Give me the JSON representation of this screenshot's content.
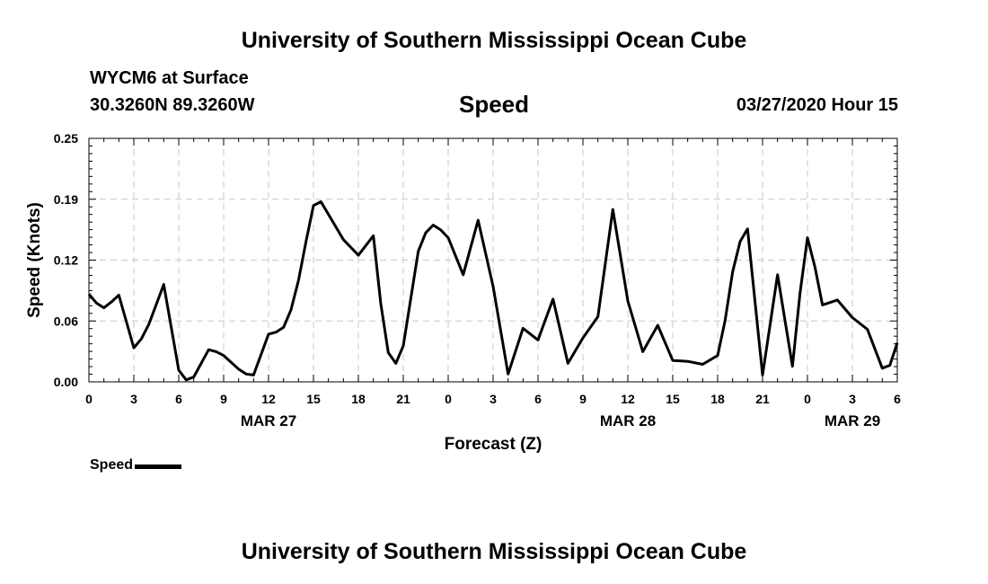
{
  "header": {
    "top_title": "University of Southern Mississippi Ocean Cube",
    "station": "WYCM6 at Surface",
    "coords": "30.3260N 89.3260W",
    "variable": "Speed",
    "datetime": "03/27/2020 Hour 15",
    "bottom_title": "University of Southern Mississippi Ocean Cube"
  },
  "chart_data": {
    "type": "line",
    "title": "Speed",
    "xlabel": "Forecast (Z)",
    "ylabel": "Speed (Knots)",
    "x_ticks": [
      "0",
      "3",
      "6",
      "9",
      "12",
      "15",
      "18",
      "21",
      "0",
      "3",
      "6",
      "9",
      "12",
      "15",
      "18",
      "21",
      "0",
      "3",
      "6"
    ],
    "x_tick_hours": [
      0,
      3,
      6,
      9,
      12,
      15,
      18,
      21,
      24,
      27,
      30,
      33,
      36,
      39,
      42,
      45,
      48,
      51,
      54
    ],
    "date_labels": [
      {
        "label": "MAR 27",
        "hour": 12
      },
      {
        "label": "MAR 28",
        "hour": 36
      },
      {
        "label": "MAR 29",
        "hour": 51
      }
    ],
    "y_ticks": [
      "0.25",
      "0.19",
      "0.12",
      "0.06",
      "0.00"
    ],
    "y_tick_values": [
      0.25,
      0.1875,
      0.125,
      0.0625,
      0
    ],
    "xlim": [
      0,
      54
    ],
    "ylim": [
      0,
      0.25
    ],
    "grid": true,
    "legend": "bottom-left",
    "series": [
      {
        "name": "Speed",
        "color": "#000000",
        "x": [
          0,
          0.5,
          1,
          1.5,
          2,
          3,
          3.5,
          4,
          5,
          6,
          6.5,
          7,
          8,
          8.5,
          9,
          10,
          10.5,
          11,
          12,
          12.5,
          13,
          13.5,
          14,
          14.5,
          15,
          15.5,
          16,
          17,
          18,
          19,
          19.5,
          20,
          20.5,
          21,
          22,
          22.5,
          23,
          23.5,
          24,
          25,
          26,
          27,
          28,
          29,
          30,
          31,
          32,
          33,
          34,
          35,
          36,
          37,
          38,
          39,
          40,
          41,
          42,
          42.5,
          43,
          43.5,
          44,
          45,
          46,
          47,
          47.5,
          48,
          48.5,
          49,
          50,
          51,
          52,
          53,
          53.5,
          54
        ],
        "y": [
          0.09,
          0.081,
          0.076,
          0.082,
          0.089,
          0.035,
          0.044,
          0.059,
          0.1,
          0.012,
          0.002,
          0.005,
          0.033,
          0.031,
          0.027,
          0.013,
          0.008,
          0.007,
          0.049,
          0.051,
          0.056,
          0.074,
          0.104,
          0.144,
          0.181,
          0.185,
          0.172,
          0.146,
          0.13,
          0.15,
          0.08,
          0.03,
          0.019,
          0.037,
          0.134,
          0.153,
          0.161,
          0.156,
          0.148,
          0.11,
          0.166,
          0.098,
          0.008,
          0.055,
          0.043,
          0.085,
          0.019,
          0.045,
          0.067,
          0.177,
          0.083,
          0.031,
          0.058,
          0.022,
          0.021,
          0.018,
          0.027,
          0.063,
          0.113,
          0.144,
          0.157,
          0.007,
          0.11,
          0.016,
          0.091,
          0.148,
          0.118,
          0.079,
          0.084,
          0.066,
          0.054,
          0.014,
          0.017,
          0.04
        ]
      }
    ]
  }
}
